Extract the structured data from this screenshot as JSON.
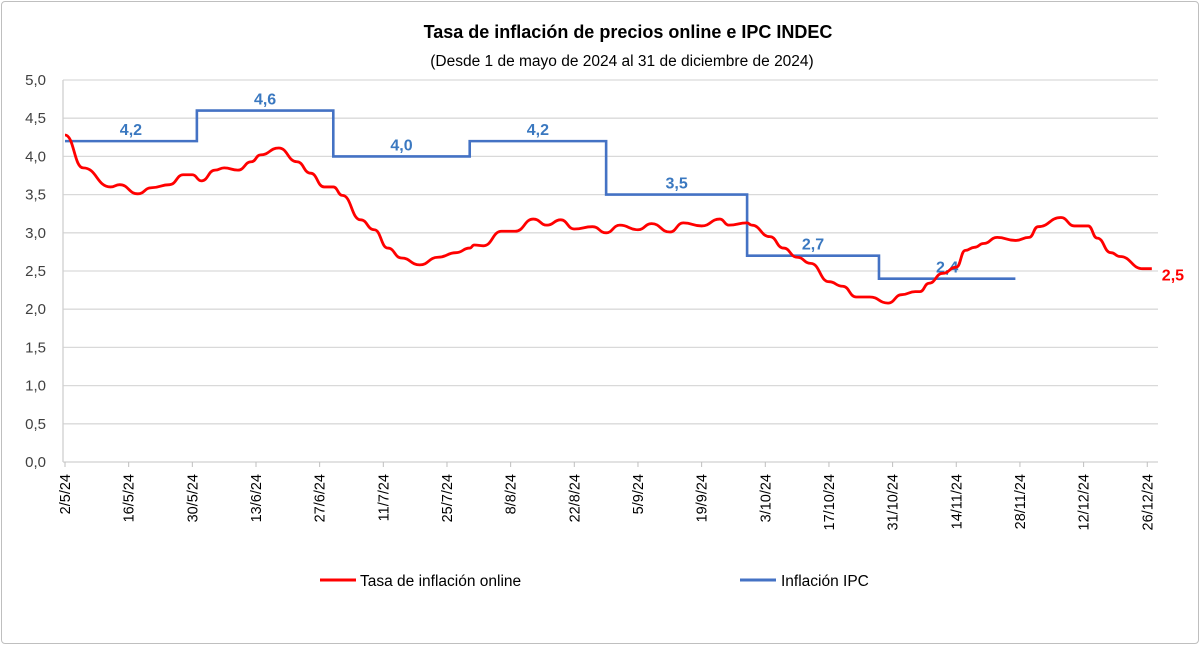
{
  "chart_data": {
    "type": "line",
    "title": "Tasa de inflación de precios online e IPC INDEC",
    "subtitle": "(Desde 1 de mayo de 2024 al 31 de diciembre de 2024)",
    "xlabel": "",
    "ylabel": "",
    "ylim": [
      0,
      5
    ],
    "xlim": [
      "2/5/24",
      "31/12/24"
    ],
    "grid": true,
    "legend_position": "bottom",
    "y_ticks": [
      "0,0",
      "0,5",
      "1,0",
      "1,5",
      "2,0",
      "2,5",
      "3,0",
      "3,5",
      "4,0",
      "4,5",
      "5,0"
    ],
    "x_ticks": [
      "2/5/24",
      "16/5/24",
      "30/5/24",
      "13/6/24",
      "27/6/24",
      "11/7/24",
      "25/7/24",
      "8/8/24",
      "22/8/24",
      "5/9/24",
      "19/9/24",
      "3/10/24",
      "17/10/24",
      "31/10/24",
      "14/11/24",
      "28/11/24",
      "12/12/24",
      "26/12/24"
    ],
    "series": [
      {
        "name": "Tasa de inflación online",
        "color": "#ff0000",
        "end_label": "2,5",
        "points": [
          [
            "2/5/24",
            4.28
          ],
          [
            "6/5/24",
            3.85
          ],
          [
            "12/5/24",
            3.6
          ],
          [
            "14/5/24",
            3.63
          ],
          [
            "18/5/24",
            3.51
          ],
          [
            "21/5/24",
            3.59
          ],
          [
            "25/5/24",
            3.63
          ],
          [
            "28/5/24",
            3.76
          ],
          [
            "30/5/24",
            3.76
          ],
          [
            "1/6/24",
            3.68
          ],
          [
            "4/6/24",
            3.82
          ],
          [
            "6/6/24",
            3.85
          ],
          [
            "9/6/24",
            3.82
          ],
          [
            "12/6/24",
            3.93
          ],
          [
            "14/6/24",
            4.02
          ],
          [
            "18/6/24",
            4.11
          ],
          [
            "22/6/24",
            3.93
          ],
          [
            "25/6/24",
            3.78
          ],
          [
            "28/6/24",
            3.6
          ],
          [
            "30/6/24",
            3.6
          ],
          [
            "2/7/24",
            3.49
          ],
          [
            "6/7/24",
            3.17
          ],
          [
            "9/7/24",
            3.04
          ],
          [
            "12/7/24",
            2.8
          ],
          [
            "15/7/24",
            2.67
          ],
          [
            "19/7/24",
            2.58
          ],
          [
            "23/7/24",
            2.68
          ],
          [
            "27/7/24",
            2.74
          ],
          [
            "30/7/24",
            2.8
          ],
          [
            "31/7/24",
            2.84
          ],
          [
            "2/8/24",
            2.83
          ],
          [
            "6/8/24",
            3.02
          ],
          [
            "9/8/24",
            3.02
          ],
          [
            "13/8/24",
            3.18
          ],
          [
            "16/8/24",
            3.1
          ],
          [
            "19/8/24",
            3.17
          ],
          [
            "22/8/24",
            3.05
          ],
          [
            "26/8/24",
            3.08
          ],
          [
            "29/8/24",
            3.0
          ],
          [
            "1/9/24",
            3.1
          ],
          [
            "5/9/24",
            3.04
          ],
          [
            "8/9/24",
            3.12
          ],
          [
            "12/9/24",
            3.01
          ],
          [
            "15/9/24",
            3.13
          ],
          [
            "19/9/24",
            3.09
          ],
          [
            "23/9/24",
            3.18
          ],
          [
            "25/9/24",
            3.1
          ],
          [
            "29/9/24",
            3.13
          ],
          [
            "30/9/24",
            3.1
          ],
          [
            "4/10/24",
            2.95
          ],
          [
            "7/10/24",
            2.8
          ],
          [
            "10/10/24",
            2.68
          ],
          [
            "13/10/24",
            2.6
          ],
          [
            "17/10/24",
            2.36
          ],
          [
            "20/10/24",
            2.3
          ],
          [
            "23/10/24",
            2.16
          ],
          [
            "26/10/24",
            2.16
          ],
          [
            "30/10/24",
            2.08
          ],
          [
            "2/11/24",
            2.19
          ],
          [
            "5/11/24",
            2.23
          ],
          [
            "6/11/24",
            2.23
          ],
          [
            "8/11/24",
            2.34
          ],
          [
            "11/11/24",
            2.47
          ],
          [
            "14/11/24",
            2.55
          ],
          [
            "16/11/24",
            2.77
          ],
          [
            "18/11/24",
            2.81
          ],
          [
            "20/11/24",
            2.86
          ],
          [
            "23/11/24",
            2.94
          ],
          [
            "27/11/24",
            2.9
          ],
          [
            "30/11/24",
            2.94
          ],
          [
            "2/12/24",
            3.08
          ],
          [
            "7/12/24",
            3.2
          ],
          [
            "10/12/24",
            3.09
          ],
          [
            "13/12/24",
            3.09
          ],
          [
            "15/12/24",
            2.93
          ],
          [
            "18/12/24",
            2.74
          ],
          [
            "20/12/24",
            2.69
          ],
          [
            "25/12/24",
            2.53
          ],
          [
            "27/12/24",
            2.53
          ]
        ]
      },
      {
        "name": "Inflación IPC",
        "color": "#4472c4",
        "steps": [
          {
            "from": "2/5/24",
            "to": "31/5/24",
            "value": 4.2,
            "label": "4,2"
          },
          {
            "from": "31/5/24",
            "to": "30/6/24",
            "value": 4.6,
            "label": "4,6"
          },
          {
            "from": "30/6/24",
            "to": "30/7/24",
            "value": 4.0,
            "label": "4,0"
          },
          {
            "from": "30/7/24",
            "to": "29/8/24",
            "value": 4.2,
            "label": "4,2"
          },
          {
            "from": "29/8/24",
            "to": "29/9/24",
            "value": 3.5,
            "label": "3,5"
          },
          {
            "from": "29/9/24",
            "to": "28/10/24",
            "value": 2.7,
            "label": "2,7"
          },
          {
            "from": "28/10/24",
            "to": "27/11/24",
            "value": 2.4,
            "label": "2,4"
          }
        ]
      }
    ]
  }
}
